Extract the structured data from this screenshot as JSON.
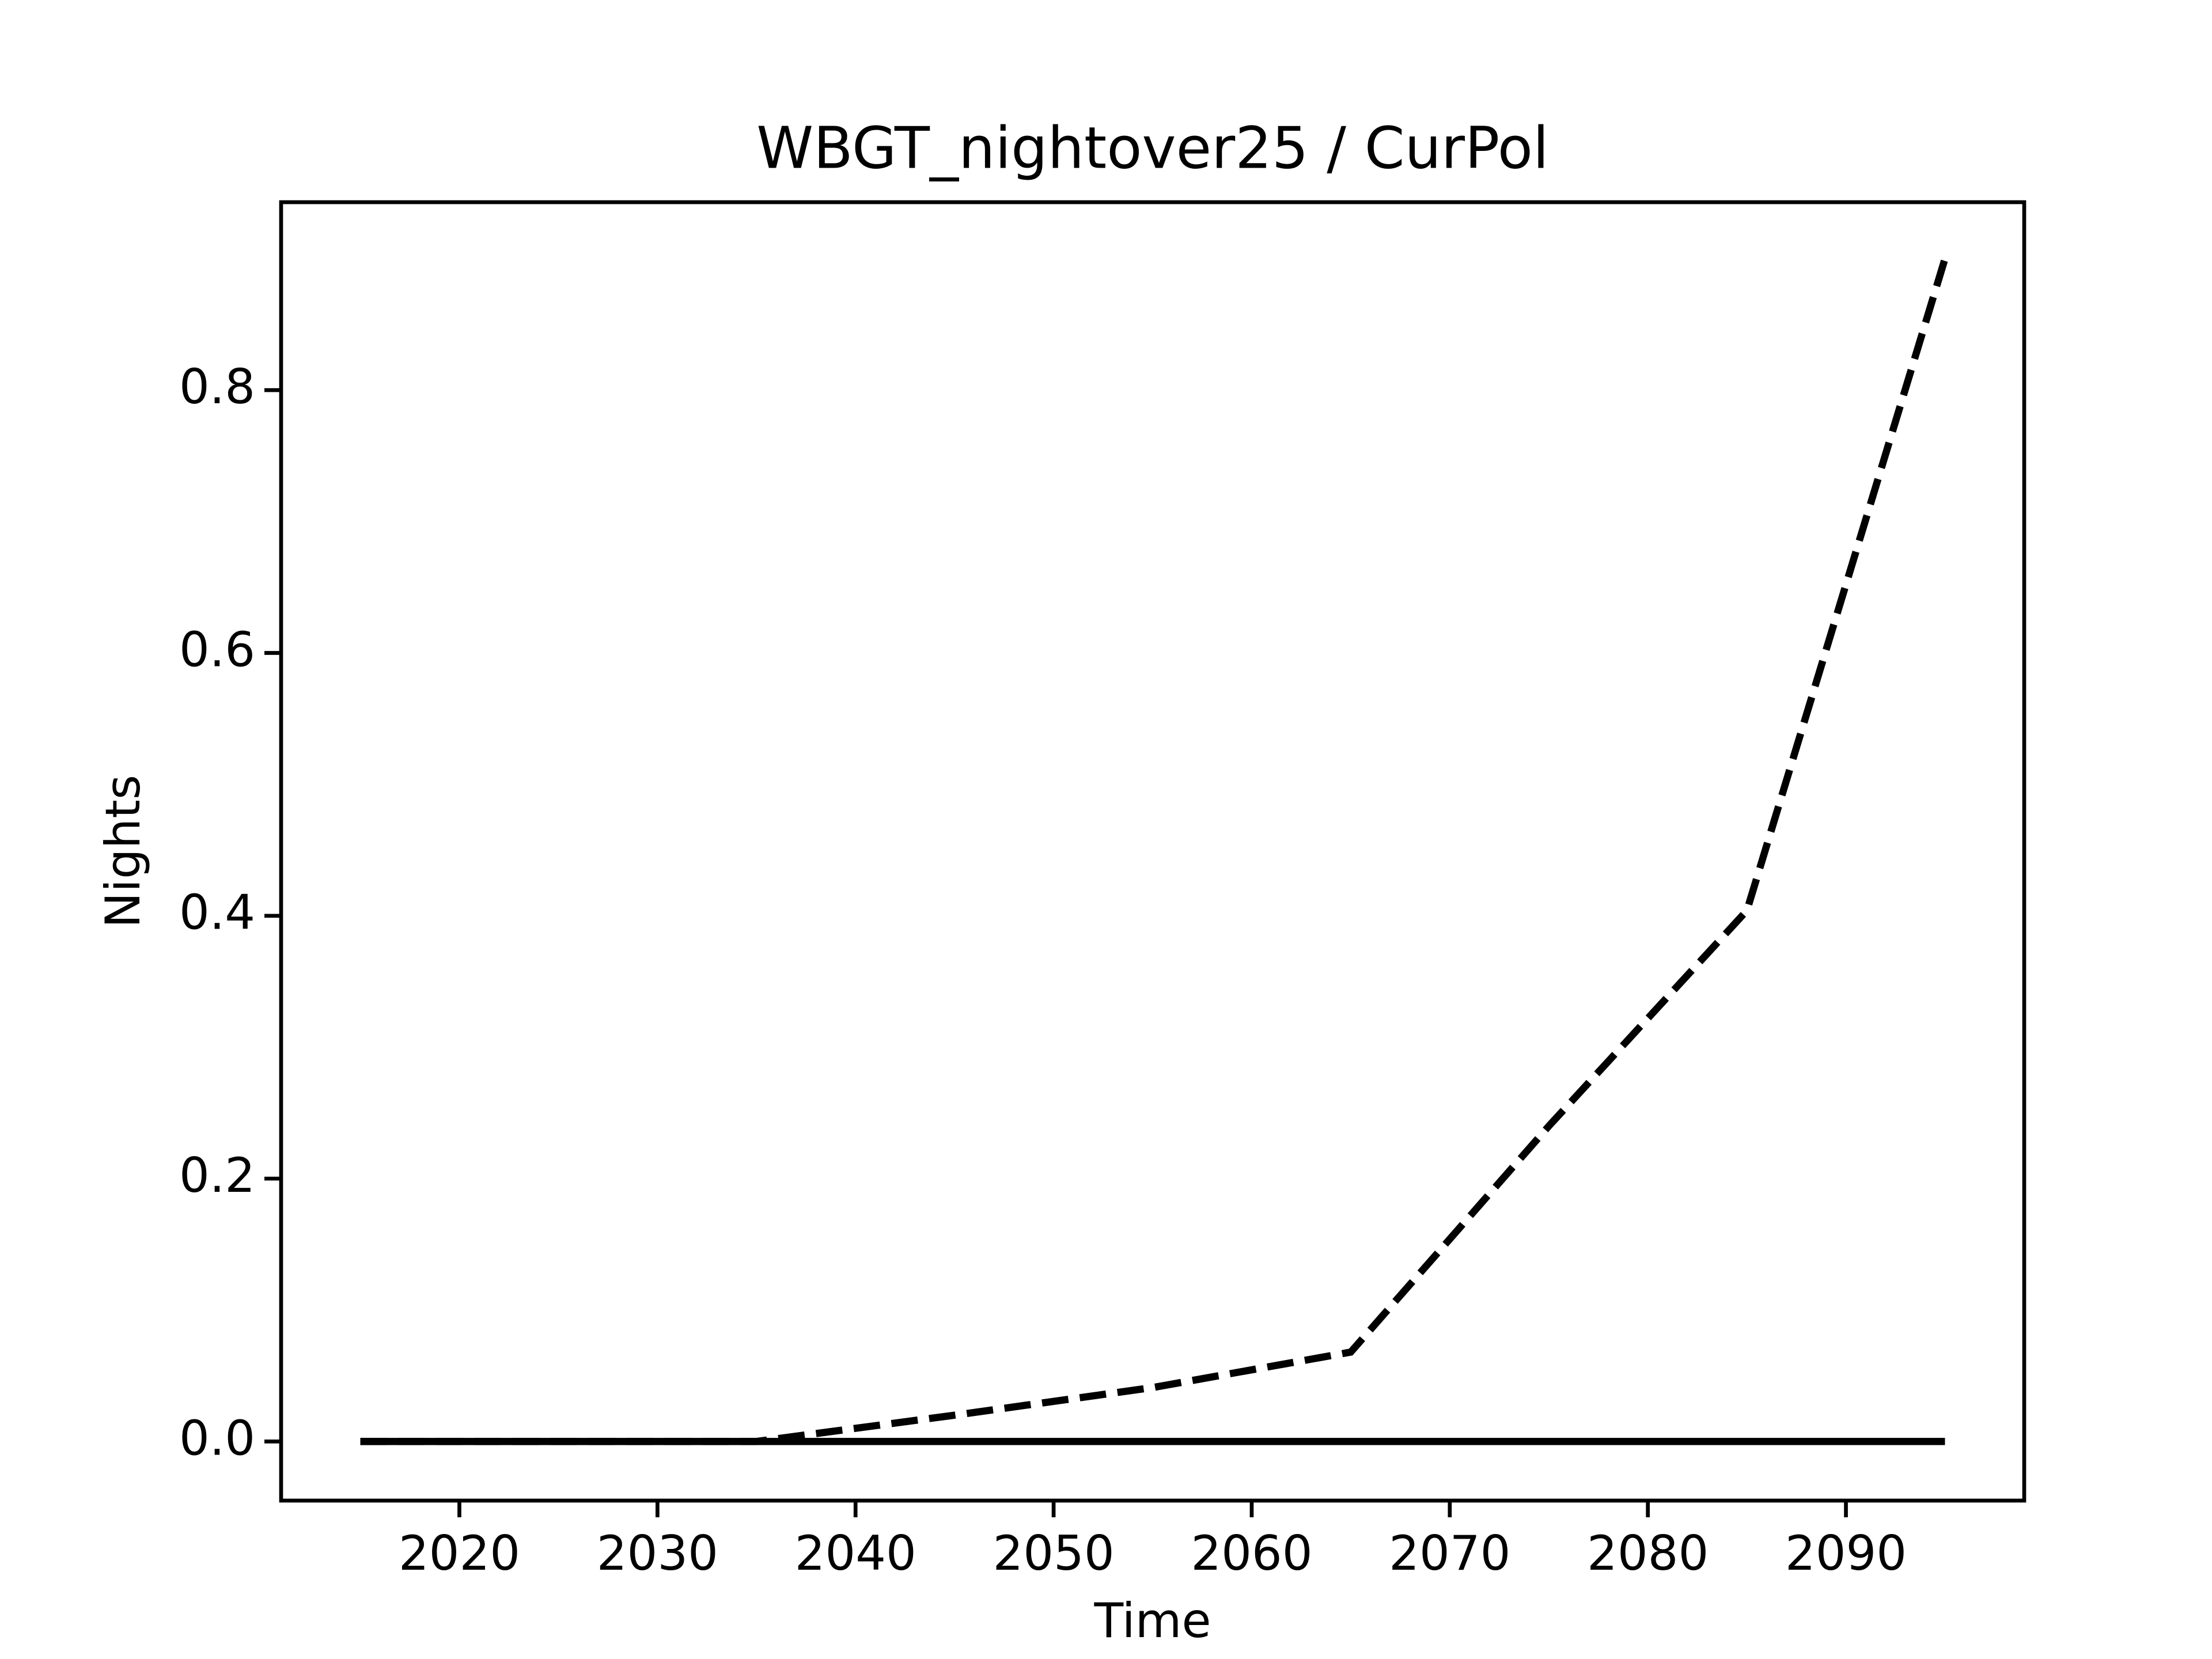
{
  "chart_data": {
    "type": "line",
    "title": "WBGT_nightover25 / CurPol",
    "x_label": "Time",
    "y_label": "Nights",
    "x": [
      2015,
      2025,
      2035,
      2045,
      2055,
      2065,
      2075,
      2085,
      2095
    ],
    "series": [
      {
        "color": "#000000",
        "dash": "dashed",
        "values": [
          0,
          0,
          0,
          0.02,
          0.041,
          0.068,
          0.24,
          0.404,
          0.9
        ]
      },
      {
        "color": "#000000",
        "dash": "solid",
        "values": [
          0,
          0,
          0,
          0,
          0,
          0,
          0,
          0,
          0
        ]
      }
    ],
    "xlim": [
      2011,
      2099
    ],
    "ylim": [
      -0.045,
      0.943
    ],
    "xticks": [
      2020,
      2030,
      2040,
      2050,
      2060,
      2070,
      2080,
      2090
    ],
    "yticks": [
      {
        "value": 0,
        "label": "0.0"
      },
      0.2,
      0.4,
      0.6,
      0.8
    ],
    "grid": false
  }
}
